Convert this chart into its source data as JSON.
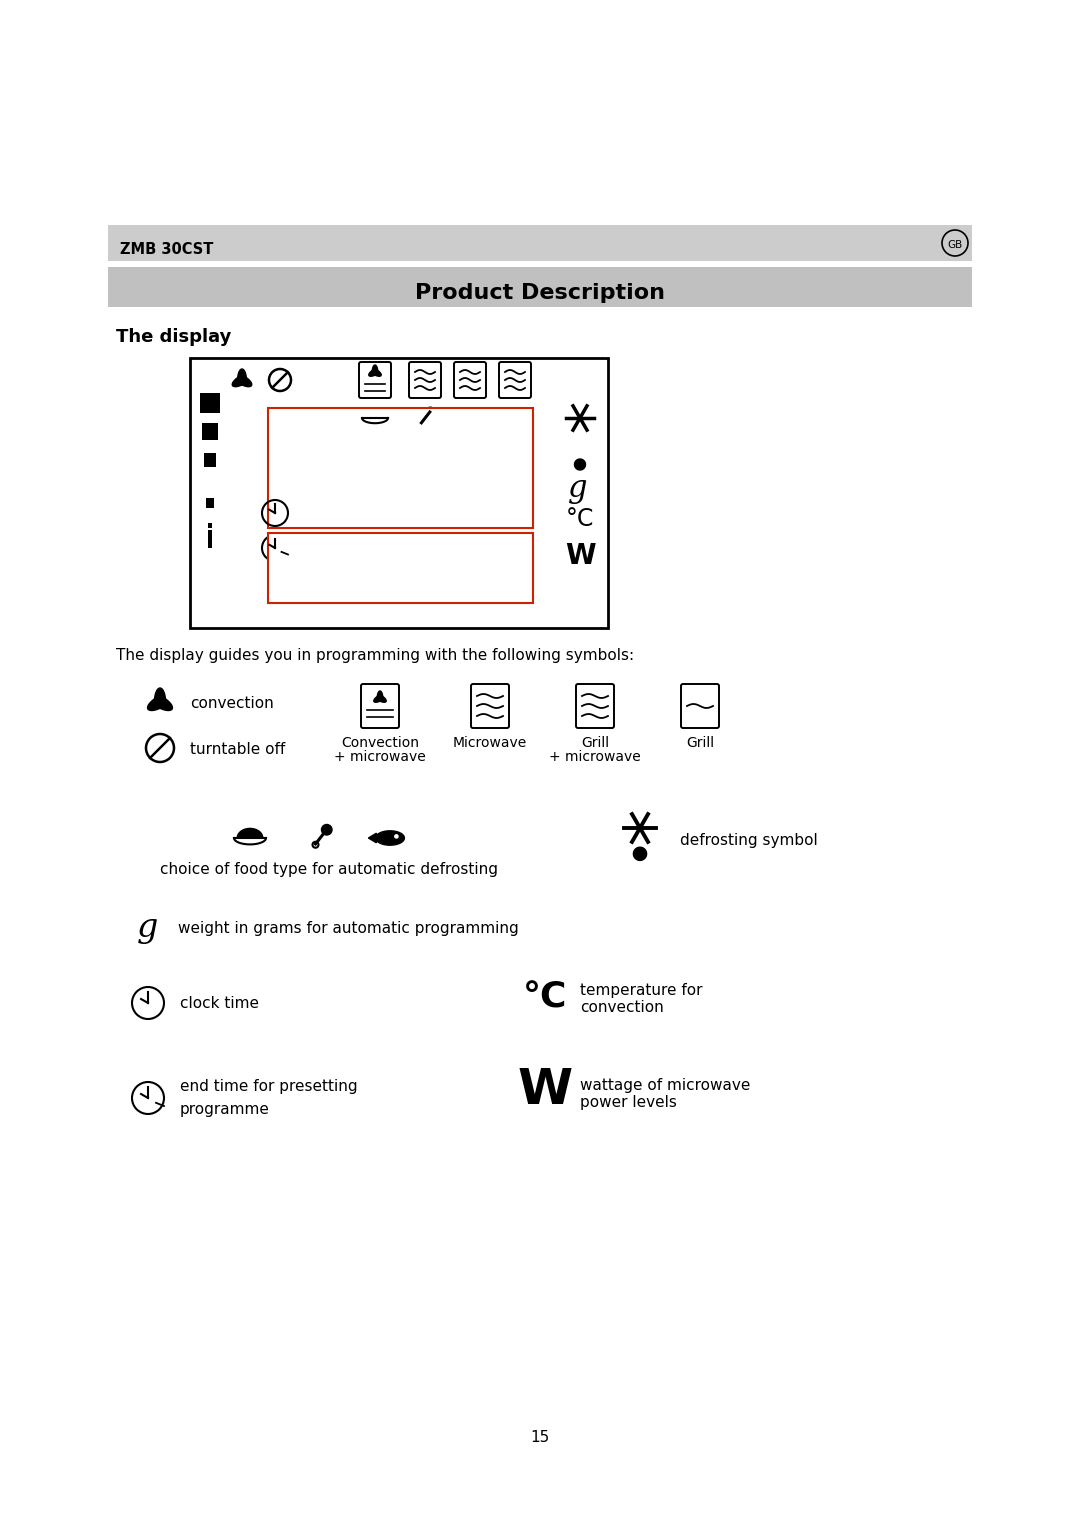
{
  "bg_color": "#ffffff",
  "page_width": 10.8,
  "page_height": 15.28,
  "header_bar_color": "#cccccc",
  "header_text": "ZMB 30CST",
  "header_gb": "GB",
  "title_bar_color": "#c0c0c0",
  "title_text": "Product Description",
  "section_heading": "The display",
  "desc_text": "The display guides you in programming with the following symbols:",
  "page_number": "15",
  "display_box_ec": "#000000",
  "display_inner_ec": "#cc2200"
}
